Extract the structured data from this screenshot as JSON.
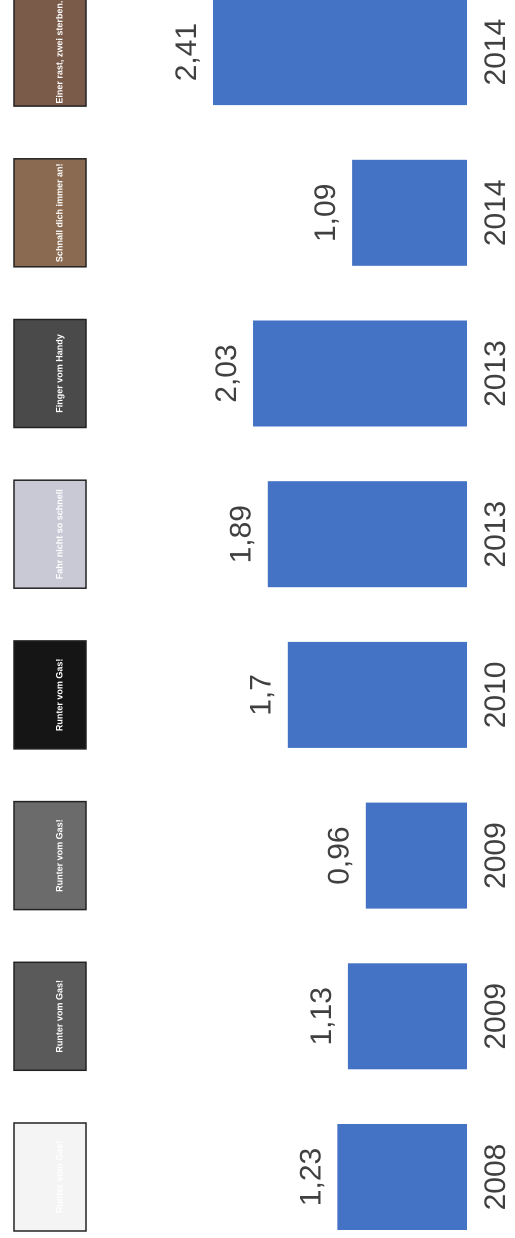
{
  "chart_data": {
    "type": "bar",
    "orientation": "horizontal",
    "categories": [
      "2008",
      "2009",
      "2009",
      "2010",
      "2013",
      "2013",
      "2014",
      "2014"
    ],
    "values": [
      1.23,
      1.13,
      0.96,
      1.7,
      1.89,
      2.03,
      1.09,
      2.41
    ],
    "value_labels": [
      "1,23",
      "1,13",
      "0,96",
      "1,7",
      "1,89",
      "2,03",
      "1,09",
      "2,41"
    ],
    "color": "#4472c4"
  },
  "thumbnails": [
    "Runter vom Gas!",
    "Runter vom Gas!",
    "Runter vom Gas!",
    "Runter vom Gas!",
    "Fahr nicht so schnell",
    "Finger vom Handy",
    "Schnall dich immer an!",
    "Einer rast, zwei sterben."
  ]
}
